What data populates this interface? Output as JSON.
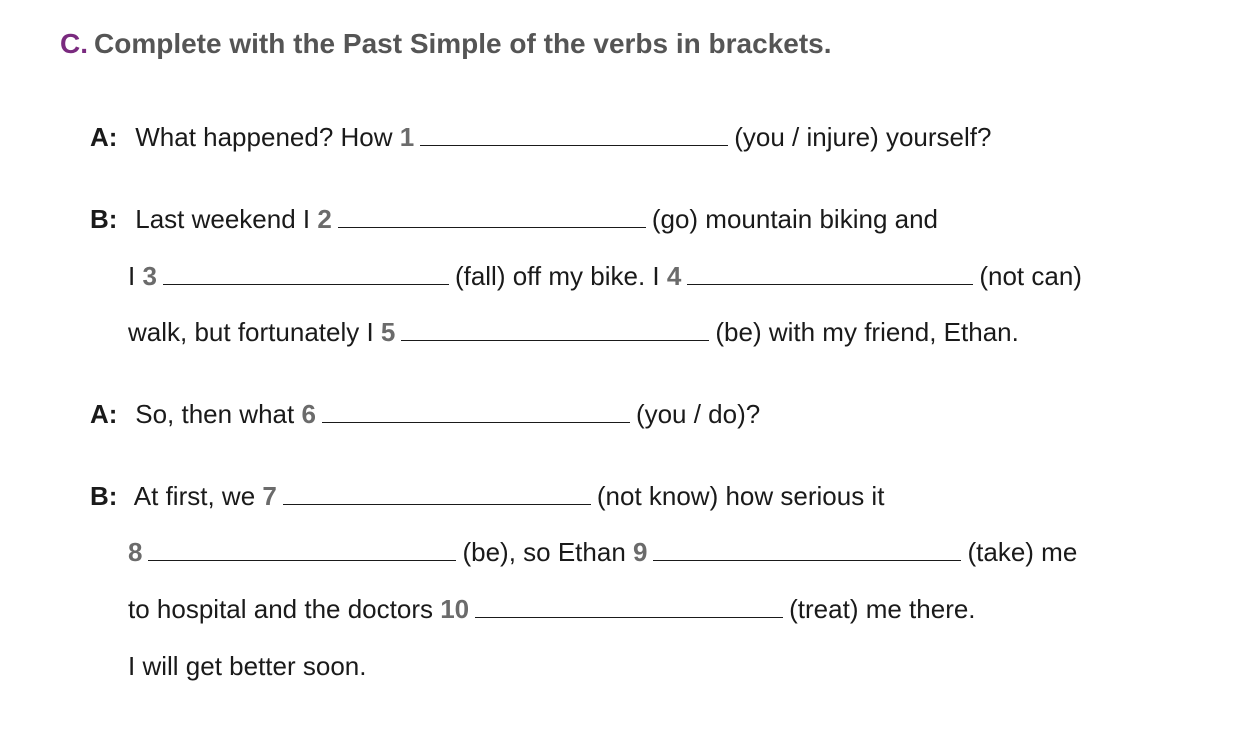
{
  "exercise": {
    "letter": "C.",
    "instruction": "Complete with the Past Simple of the verbs in brackets."
  },
  "dialogue": {
    "l1": {
      "speaker": "A:",
      "pre": "What happened? How",
      "num": "1",
      "post": "(you / injure) yourself?"
    },
    "l2": {
      "speaker": "B:",
      "pre": "Last weekend I",
      "num": "2",
      "post": "(go) mountain biking and"
    },
    "l3": {
      "pre": "I",
      "num": "3",
      "mid": "(fall) off my bike. I",
      "num2": "4",
      "post": "(not can)"
    },
    "l4": {
      "pre": "walk, but fortunately I",
      "num": "5",
      "post": "(be) with my friend, Ethan."
    },
    "l5": {
      "speaker": "A:",
      "pre": "So, then what",
      "num": "6",
      "post": "(you / do)?"
    },
    "l6": {
      "speaker": "B:",
      "pre": "At first, we",
      "num": "7",
      "post": "(not know) how serious it"
    },
    "l7": {
      "num": "8",
      "mid": "(be), so Ethan",
      "num2": "9",
      "post": "(take) me"
    },
    "l8": {
      "pre": "to hospital and the doctors",
      "num": "10",
      "post": "(treat) me there."
    },
    "l9": {
      "text": "I will get better soon."
    }
  },
  "colors": {
    "accent": "#7a2a7f",
    "heading": "#555555",
    "number": "#6b6b6b",
    "text": "#1a1a1a"
  }
}
